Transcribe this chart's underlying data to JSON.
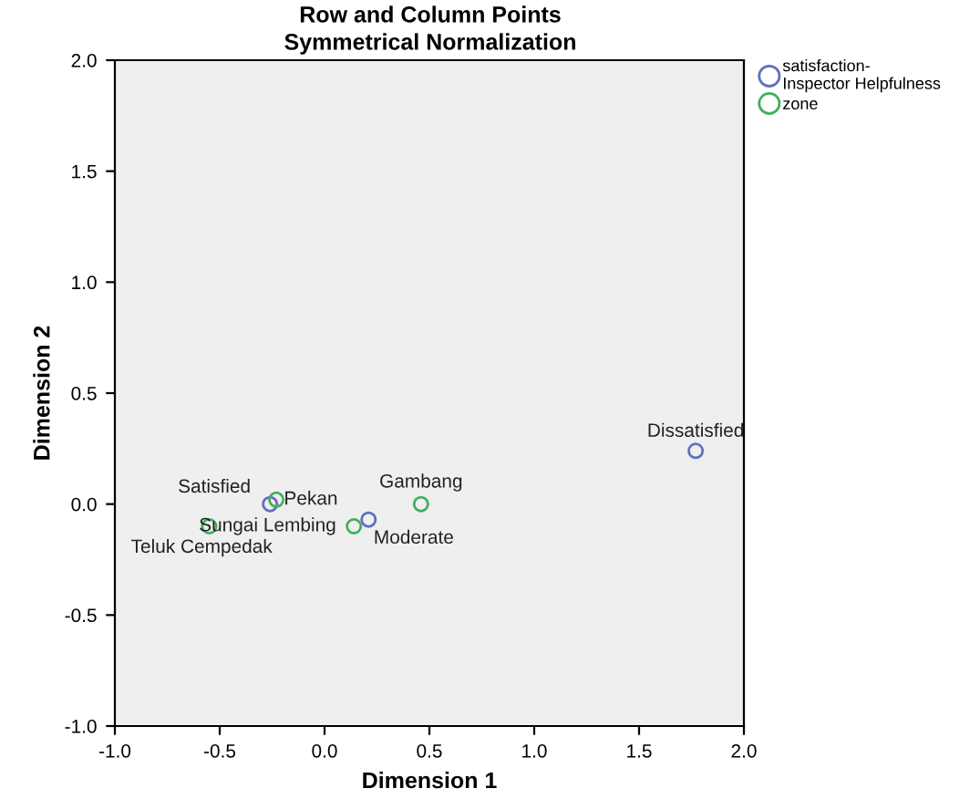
{
  "chart_data": {
    "type": "scatter",
    "title": "Row and Column Points",
    "subtitle": "Symmetrical Normalization",
    "xlabel": "Dimension 1",
    "ylabel": "Dimension 2",
    "xlim": [
      -1.0,
      2.0
    ],
    "ylim": [
      -1.0,
      2.0
    ],
    "xticks": [
      {
        "value": -1.0,
        "label": "-1.0"
      },
      {
        "value": -0.5,
        "label": "-0.5"
      },
      {
        "value": 0.0,
        "label": "0.0"
      },
      {
        "value": 0.5,
        "label": "0.5"
      },
      {
        "value": 1.0,
        "label": "1.0"
      },
      {
        "value": 1.5,
        "label": "1.5"
      },
      {
        "value": 2.0,
        "label": "2.0"
      }
    ],
    "yticks": [
      {
        "value": -1.0,
        "label": "-1.0"
      },
      {
        "value": -0.5,
        "label": "-0.5"
      },
      {
        "value": 0.0,
        "label": "0.0"
      },
      {
        "value": 0.5,
        "label": "0.5"
      },
      {
        "value": 1.0,
        "label": "1.0"
      },
      {
        "value": 1.5,
        "label": "1.5"
      },
      {
        "value": 2.0,
        "label": "2.0"
      }
    ],
    "series": [
      {
        "name": "satisfaction-Inspector Helpfulness",
        "color": "#6070c0",
        "x": [
          -0.26,
          0.21,
          1.77
        ],
        "values": [
          0.0,
          -0.07,
          0.24
        ]
      },
      {
        "name": "zone",
        "color": "#40b060",
        "x": [
          -0.23,
          -0.55,
          0.14,
          0.46
        ],
        "values": [
          0.02,
          -0.1,
          -0.1,
          0.0
        ]
      }
    ],
    "annotations": [
      {
        "text": "Satisfied",
        "x": -0.26,
        "y": 0.0
      },
      {
        "text": "Moderate",
        "x": 0.21,
        "y": -0.07
      },
      {
        "text": "Dissatisfied",
        "x": 1.77,
        "y": 0.24
      },
      {
        "text": "Pekan",
        "x": -0.23,
        "y": 0.02
      },
      {
        "text": "Teluk Cempedak",
        "x": -0.55,
        "y": -0.1
      },
      {
        "text": "Sungai Lembing",
        "x": 0.14,
        "y": -0.1
      },
      {
        "text": "Gambang",
        "x": 0.46,
        "y": 0.0
      }
    ],
    "marker": "circle",
    "grid": false,
    "legend": "top right"
  }
}
